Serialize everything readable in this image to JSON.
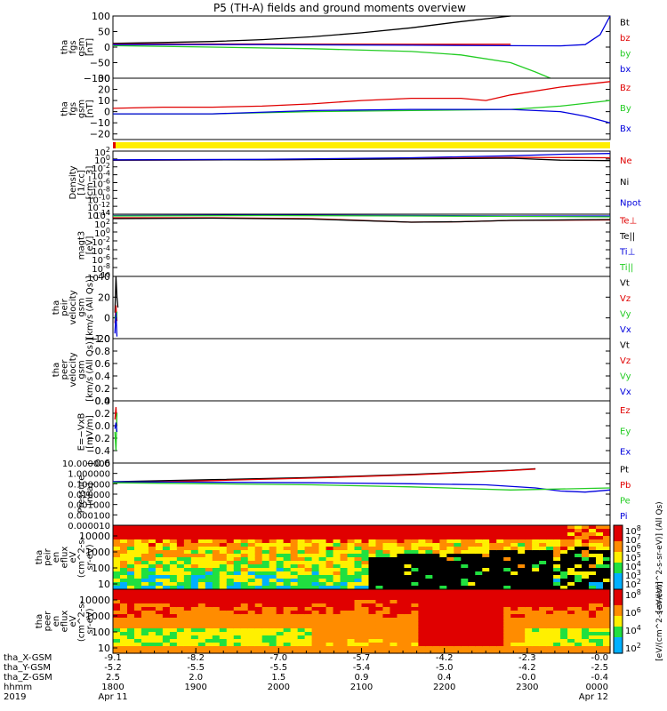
{
  "title": "P5 (TH-A) fields and ground moments overview",
  "colors": {
    "black": "#000000",
    "red": "#e00000",
    "green": "#22cc22",
    "blue": "#0000dd",
    "yellow": "#ffee00"
  },
  "chart_data": [
    {
      "type": "line",
      "ylabel": [
        "tha",
        "fgs",
        "gsm",
        "[nT]"
      ],
      "ylim": [
        -100,
        100
      ],
      "yticks": [
        "100",
        "50",
        "0",
        "−50",
        "−100"
      ],
      "ytick_values": [
        100,
        50,
        0,
        -50,
        -100
      ],
      "legend": [
        {
          "name": "Bt",
          "color": "black"
        },
        {
          "name": "bz",
          "color": "red"
        },
        {
          "name": "by",
          "color": "green"
        },
        {
          "name": "bx",
          "color": "blue"
        }
      ],
      "series": [
        {
          "name": "Bt",
          "color": "black",
          "x": [
            0,
            0.1,
            0.2,
            0.3,
            0.4,
            0.5,
            0.6,
            0.7,
            0.8
          ],
          "y": [
            12,
            15,
            18,
            24,
            33,
            46,
            62,
            82,
            105
          ]
        },
        {
          "name": "bz",
          "color": "red",
          "x": [
            0,
            0.3,
            0.6,
            0.8
          ],
          "y": [
            10,
            10,
            9,
            9
          ]
        },
        {
          "name": "by",
          "color": "green",
          "x": [
            0,
            0.2,
            0.4,
            0.6,
            0.7,
            0.8,
            0.85,
            0.88
          ],
          "y": [
            5,
            0,
            -5,
            -14,
            -25,
            -50,
            -80,
            -100
          ]
        },
        {
          "name": "bx",
          "color": "blue",
          "x": [
            0,
            0.3,
            0.6,
            0.9,
            0.95,
            0.98,
            1.0
          ],
          "y": [
            8,
            8,
            6,
            4,
            8,
            40,
            100
          ]
        }
      ]
    },
    {
      "type": "line",
      "ylabel": [
        "tha",
        "fgs",
        "gsm",
        "[nT]"
      ],
      "ylim": [
        -25,
        30
      ],
      "yticks": [
        "30",
        "20",
        "10",
        "0",
        "−10",
        "−20"
      ],
      "ytick_values": [
        30,
        20,
        10,
        0,
        -10,
        -20
      ],
      "legend": [
        {
          "name": "Bz",
          "color": "red"
        },
        {
          "name": "By",
          "color": "green"
        },
        {
          "name": "Bx",
          "color": "blue"
        }
      ],
      "series": [
        {
          "name": "Bz",
          "color": "red",
          "x": [
            0,
            0.1,
            0.2,
            0.3,
            0.4,
            0.5,
            0.6,
            0.7,
            0.75,
            0.8,
            0.9,
            1.0
          ],
          "y": [
            3,
            4,
            4,
            5,
            7,
            10,
            12,
            12,
            10,
            15,
            22,
            27
          ]
        },
        {
          "name": "By",
          "color": "green",
          "x": [
            0,
            0.2,
            0.4,
            0.6,
            0.8,
            0.9,
            1.0
          ],
          "y": [
            -2,
            -2,
            0,
            1,
            2,
            5,
            10
          ]
        },
        {
          "name": "Bx",
          "color": "blue",
          "x": [
            0,
            0.2,
            0.4,
            0.6,
            0.8,
            0.9,
            0.95,
            1.0
          ],
          "y": [
            -2,
            -2,
            1,
            2,
            2,
            0,
            -4,
            -10
          ]
        }
      ]
    },
    {
      "type": "bar",
      "mode_bar": true
    },
    {
      "type": "line",
      "log": true,
      "ylabel": [
        "Density",
        "[1/cc]",
        "[cm−3]"
      ],
      "ylim_exp": [
        -14,
        2
      ],
      "yticks_exp": [
        2,
        0,
        -2,
        -4,
        -6,
        -8,
        -10,
        -12,
        -14
      ],
      "legend": [
        {
          "name": "Ne",
          "color": "red"
        },
        {
          "name": "Ni",
          "color": "black"
        },
        {
          "name": "Npot",
          "color": "blue"
        }
      ],
      "series": [
        {
          "name": "Ne",
          "color": "red",
          "x": [
            0,
            0.3,
            0.6,
            0.8,
            1.0
          ],
          "y": [
            -0.3,
            -0.2,
            0.1,
            0.4,
            0.3
          ]
        },
        {
          "name": "Ni",
          "color": "black",
          "x": [
            0,
            0.3,
            0.6,
            0.8,
            0.9,
            1.0
          ],
          "y": [
            -0.3,
            -0.2,
            0,
            0.2,
            -0.3,
            -0.4
          ]
        },
        {
          "name": "Npot",
          "color": "blue",
          "x": [
            0,
            0.3,
            0.6,
            0.8,
            0.9,
            1.0
          ],
          "y": [
            -0.2,
            -0.1,
            0.3,
            0.8,
            1.2,
            1.4
          ]
        }
      ]
    },
    {
      "type": "line",
      "log": true,
      "ylabel": [
        "magt3",
        "[eV]"
      ],
      "ylim_exp": [
        -10,
        4
      ],
      "yticks_exp": [
        4,
        2,
        0,
        -2,
        -4,
        -6,
        -8,
        -10
      ],
      "legend": [
        {
          "name": "Te⊥",
          "color": "red"
        },
        {
          "name": "Te||",
          "color": "black"
        },
        {
          "name": "Ti⊥",
          "color": "blue"
        },
        {
          "name": "Ti||",
          "color": "green"
        }
      ],
      "series": [
        {
          "name": "Ti⊥",
          "color": "blue",
          "x": [
            0,
            0.3,
            0.6,
            0.8,
            1.0
          ],
          "y": [
            3.7,
            3.8,
            3.7,
            3.6,
            3.6
          ]
        },
        {
          "name": "Ti||",
          "color": "green",
          "x": [
            0,
            0.3,
            0.6,
            0.8,
            1.0
          ],
          "y": [
            3.6,
            3.7,
            3.6,
            3.5,
            3.4
          ]
        },
        {
          "name": "Te⊥",
          "color": "red",
          "x": [
            0,
            0.2,
            0.4,
            0.6,
            0.7,
            0.8,
            1.0
          ],
          "y": [
            3.2,
            3.2,
            3.0,
            2.2,
            2.3,
            2.6,
            2.7
          ]
        },
        {
          "name": "Te||",
          "color": "black",
          "x": [
            0,
            0.2,
            0.4,
            0.6,
            0.7,
            0.8,
            1.0
          ],
          "y": [
            3.0,
            3.1,
            2.9,
            2.2,
            2.3,
            2.6,
            2.8
          ]
        }
      ]
    },
    {
      "type": "line",
      "ylabel": [
        "tha",
        "peir",
        "velocity",
        "gsm",
        "[km/s (All Qs)]"
      ],
      "ylim": [
        -20,
        40
      ],
      "yticks": [
        "40",
        "20",
        "0",
        "−20"
      ],
      "ytick_values": [
        40,
        20,
        0,
        -20
      ],
      "legend": [
        {
          "name": "Vt",
          "color": "black"
        },
        {
          "name": "Vz",
          "color": "red"
        },
        {
          "name": "Vy",
          "color": "green"
        },
        {
          "name": "Vx",
          "color": "blue"
        }
      ],
      "series": [
        {
          "name": "Vt",
          "color": "black",
          "x": [
            0.004,
            0.006,
            0.008,
            0.01
          ],
          "y": [
            5,
            40,
            20,
            10
          ]
        },
        {
          "name": "Vz",
          "color": "red",
          "x": [
            0.004,
            0.006,
            0.008
          ],
          "y": [
            -5,
            12,
            -3
          ]
        },
        {
          "name": "Vy",
          "color": "green",
          "x": [
            0.004,
            0.006,
            0.008
          ],
          "y": [
            2,
            -8,
            6
          ]
        },
        {
          "name": "Vx",
          "color": "blue",
          "x": [
            0.004,
            0.006,
            0.008
          ],
          "y": [
            -15,
            5,
            -18
          ]
        }
      ]
    },
    {
      "type": "line",
      "ylabel": [
        "tha",
        "peer",
        "velocity",
        "gsm",
        "[km/s (All Qs)]"
      ],
      "ylim": [
        0,
        1
      ],
      "yticks": [
        "1.0",
        "0.8",
        "0.6",
        "0.4",
        "0.2",
        "0.0"
      ],
      "ytick_values": [
        1.0,
        0.8,
        0.6,
        0.4,
        0.2,
        0.0
      ],
      "legend": [
        {
          "name": "Vt",
          "color": "black"
        },
        {
          "name": "Vz",
          "color": "red"
        },
        {
          "name": "Vy",
          "color": "green"
        },
        {
          "name": "Vx",
          "color": "blue"
        }
      ],
      "series": []
    },
    {
      "type": "line",
      "ylabel": [
        "E=−VxB",
        "[mV/m]"
      ],
      "ylim": [
        -0.6,
        0.4
      ],
      "yticks": [
        "0.4",
        "0.2",
        "0.0",
        "−0.2",
        "−0.4",
        "−0.6"
      ],
      "ytick_values": [
        0.4,
        0.2,
        0.0,
        -0.2,
        -0.4,
        -0.6
      ],
      "legend": [
        {
          "name": "Ez",
          "color": "red"
        },
        {
          "name": "Ey",
          "color": "green"
        },
        {
          "name": "Ex",
          "color": "blue"
        }
      ],
      "series": [
        {
          "name": "Ez",
          "color": "red",
          "x": [
            0.004,
            0.006,
            0.008
          ],
          "y": [
            0.1,
            0.3,
            0.0
          ]
        },
        {
          "name": "Ey",
          "color": "green",
          "x": [
            0.004,
            0.006,
            0.008
          ],
          "y": [
            -0.1,
            -0.4,
            0.2
          ]
        },
        {
          "name": "Ex",
          "color": "blue",
          "x": [
            0.004,
            0.006,
            0.008
          ],
          "y": [
            -0.05,
            0.05,
            -0.1
          ]
        }
      ]
    },
    {
      "type": "line",
      "log": true,
      "ylabel": [
        "Pressure",
        "[nPa]"
      ],
      "ylim_exp": [
        -5,
        1
      ],
      "yticks_exp": [
        1,
        0,
        -1,
        -2,
        -3,
        -4,
        -5
      ],
      "yticks": [
        "10.000000",
        "1.000000",
        "0.100000",
        "0.010000",
        "0.001000",
        "0.000100",
        "0.000010"
      ],
      "legend": [
        {
          "name": "Pt",
          "color": "black"
        },
        {
          "name": "Pb",
          "color": "red"
        },
        {
          "name": "Pe",
          "color": "green"
        },
        {
          "name": "Pi",
          "color": "blue"
        }
      ],
      "series": [
        {
          "name": "Pt",
          "color": "black",
          "x": [
            0,
            0.2,
            0.4,
            0.6,
            0.8,
            0.85
          ],
          "y": [
            -0.8,
            -0.6,
            -0.4,
            -0.1,
            0.3,
            0.45
          ]
        },
        {
          "name": "Pb",
          "color": "red",
          "x": [
            0,
            0.2,
            0.4,
            0.6,
            0.8,
            0.85
          ],
          "y": [
            -0.9,
            -0.7,
            -0.45,
            -0.15,
            0.28,
            0.42
          ]
        },
        {
          "name": "Pi",
          "color": "blue",
          "x": [
            0,
            0.2,
            0.4,
            0.6,
            0.75,
            0.85,
            0.9,
            0.95,
            1.0
          ],
          "y": [
            -0.8,
            -0.85,
            -0.9,
            -1.0,
            -1.1,
            -1.4,
            -1.7,
            -1.8,
            -1.6
          ]
        },
        {
          "name": "Pe",
          "color": "green",
          "x": [
            0,
            0.2,
            0.4,
            0.6,
            0.8,
            0.9,
            1.0
          ],
          "y": [
            -0.9,
            -1.0,
            -1.1,
            -1.3,
            -1.6,
            -1.5,
            -1.4
          ]
        }
      ]
    },
    {
      "type": "heatmap",
      "ylabel": [
        "tha",
        "peir",
        "en",
        "eflux",
        "eV",
        "(cm^2-s-",
        "sr-eV)"
      ],
      "yticks": [
        "10000",
        "1000",
        "100",
        "10"
      ],
      "zlabel": "[eV/(cm^2-s-sr-eV)] (All Qs)",
      "zticks_exp": [
        8,
        7,
        6,
        5,
        4,
        3,
        2
      ]
    },
    {
      "type": "heatmap",
      "ylabel": [
        "tha",
        "peer",
        "en",
        "eflux",
        "eV",
        "(cm^2-s-",
        "sr-eV)"
      ],
      "yticks": [
        "10000",
        "1000",
        "100",
        "10"
      ],
      "zlabel": "[eV/(cm^2-s-sr-eV)]",
      "zticks_exp": [
        8,
        6,
        4,
        2
      ]
    }
  ],
  "x_axis": {
    "row_labels": [
      "tha_X-GSM",
      "tha_Y-GSM",
      "tha_Z-GSM",
      "hhmm",
      "2019"
    ],
    "ticks": [
      {
        "x": 0.0,
        "rows": [
          "-9.1",
          "-5.2",
          "2.5",
          "1800",
          "Apr 11"
        ]
      },
      {
        "x": 0.1667,
        "rows": [
          "-8.2",
          "-5.5",
          "2.0",
          "1900",
          ""
        ]
      },
      {
        "x": 0.3333,
        "rows": [
          "-7.0",
          "-5.5",
          "1.5",
          "2000",
          ""
        ]
      },
      {
        "x": 0.5,
        "rows": [
          "-5.7",
          "-5.4",
          "0.9",
          "2100",
          ""
        ]
      },
      {
        "x": 0.6667,
        "rows": [
          "-4.2",
          "-5.0",
          "0.4",
          "2200",
          ""
        ]
      },
      {
        "x": 0.8333,
        "rows": [
          "-2.3",
          "-4.2",
          "-0.0",
          "2300",
          ""
        ]
      },
      {
        "x": 1.0,
        "rows": [
          "-0.0",
          "-2.5",
          "-0.4",
          "0000",
          "Apr 12"
        ]
      }
    ]
  }
}
